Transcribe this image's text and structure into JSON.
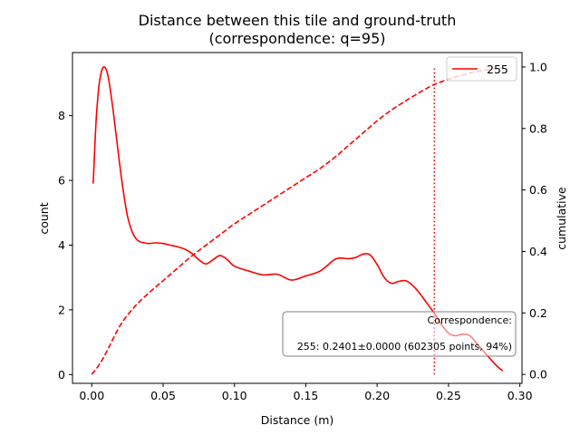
{
  "chart_data": {
    "type": "line",
    "title_line1": "Distance between this tile and ground-truth",
    "title_line2": "(correspondence: q=95)",
    "xlabel": "Distance (m)",
    "ylabel_left": "count",
    "ylabel_right": "cumulative",
    "xlim": [
      -0.0135,
      0.3015
    ],
    "ylim_left": [
      -0.27,
      9.95
    ],
    "ylim_right": [
      -0.029,
      1.047
    ],
    "x_ticks": [
      0.0,
      0.05,
      0.1,
      0.15,
      0.2,
      0.25,
      0.3
    ],
    "x_tick_labels": [
      "0.00",
      "0.05",
      "0.10",
      "0.15",
      "0.20",
      "0.25",
      "0.30"
    ],
    "y_left_ticks": [
      0,
      2,
      4,
      6,
      8
    ],
    "y_left_tick_labels": [
      "0",
      "2",
      "4",
      "6",
      "8"
    ],
    "y_right_ticks": [
      0.0,
      0.2,
      0.4,
      0.6,
      0.8,
      1.0
    ],
    "y_right_tick_labels": [
      "0.0",
      "0.2",
      "0.4",
      "0.6",
      "0.8",
      "1.0"
    ],
    "color": "#ff0000",
    "legend": {
      "label": "255",
      "placement": "upper right"
    },
    "series": [
      {
        "name": "255",
        "style": "solid",
        "axis": "left",
        "x": [
          0.001,
          0.003,
          0.005,
          0.007,
          0.009,
          0.011,
          0.013,
          0.016,
          0.019,
          0.022,
          0.025,
          0.028,
          0.031,
          0.034,
          0.037,
          0.04,
          0.045,
          0.05,
          0.055,
          0.06,
          0.065,
          0.07,
          0.075,
          0.08,
          0.085,
          0.09,
          0.095,
          0.1,
          0.11,
          0.12,
          0.13,
          0.14,
          0.15,
          0.16,
          0.17,
          0.175,
          0.18,
          0.185,
          0.19,
          0.195,
          0.2,
          0.205,
          0.21,
          0.215,
          0.22,
          0.225,
          0.23,
          0.235,
          0.24,
          0.245,
          0.25,
          0.255,
          0.26,
          0.265,
          0.27,
          0.275,
          0.28,
          0.285,
          0.288
        ],
        "y": [
          5.9,
          7.8,
          8.9,
          9.4,
          9.5,
          9.3,
          8.8,
          7.8,
          6.7,
          5.7,
          4.9,
          4.45,
          4.2,
          4.1,
          4.07,
          4.05,
          4.07,
          4.05,
          4.0,
          3.95,
          3.88,
          3.75,
          3.55,
          3.42,
          3.55,
          3.68,
          3.55,
          3.35,
          3.2,
          3.08,
          3.1,
          2.92,
          3.05,
          3.2,
          3.55,
          3.6,
          3.58,
          3.62,
          3.72,
          3.7,
          3.4,
          3.0,
          2.82,
          2.88,
          2.9,
          2.75,
          2.5,
          2.2,
          1.9,
          1.55,
          1.28,
          1.2,
          1.25,
          1.2,
          0.95,
          0.7,
          0.45,
          0.22,
          0.12
        ]
      },
      {
        "name": "cumulative",
        "style": "dashed",
        "axis": "right",
        "x": [
          0.0,
          0.005,
          0.01,
          0.02,
          0.03,
          0.04,
          0.05,
          0.06,
          0.07,
          0.08,
          0.09,
          0.1,
          0.11,
          0.12,
          0.13,
          0.14,
          0.15,
          0.16,
          0.17,
          0.18,
          0.19,
          0.2,
          0.21,
          0.22,
          0.23,
          0.24,
          0.25,
          0.26,
          0.27,
          0.28,
          0.288
        ],
        "y": [
          0.0,
          0.03,
          0.07,
          0.16,
          0.22,
          0.265,
          0.305,
          0.345,
          0.385,
          0.42,
          0.455,
          0.49,
          0.52,
          0.55,
          0.58,
          0.61,
          0.64,
          0.67,
          0.705,
          0.745,
          0.785,
          0.825,
          0.86,
          0.89,
          0.918,
          0.943,
          0.96,
          0.975,
          0.985,
          0.993,
          0.997
        ]
      }
    ],
    "vline": {
      "x": 0.2401,
      "y_range_right": [
        0.0,
        1.0
      ],
      "style": "dotted"
    },
    "annotation": {
      "line1": "Correspondence:",
      "line2": "255: 0.2401±0.0000 (602305 points, 94%)"
    }
  }
}
